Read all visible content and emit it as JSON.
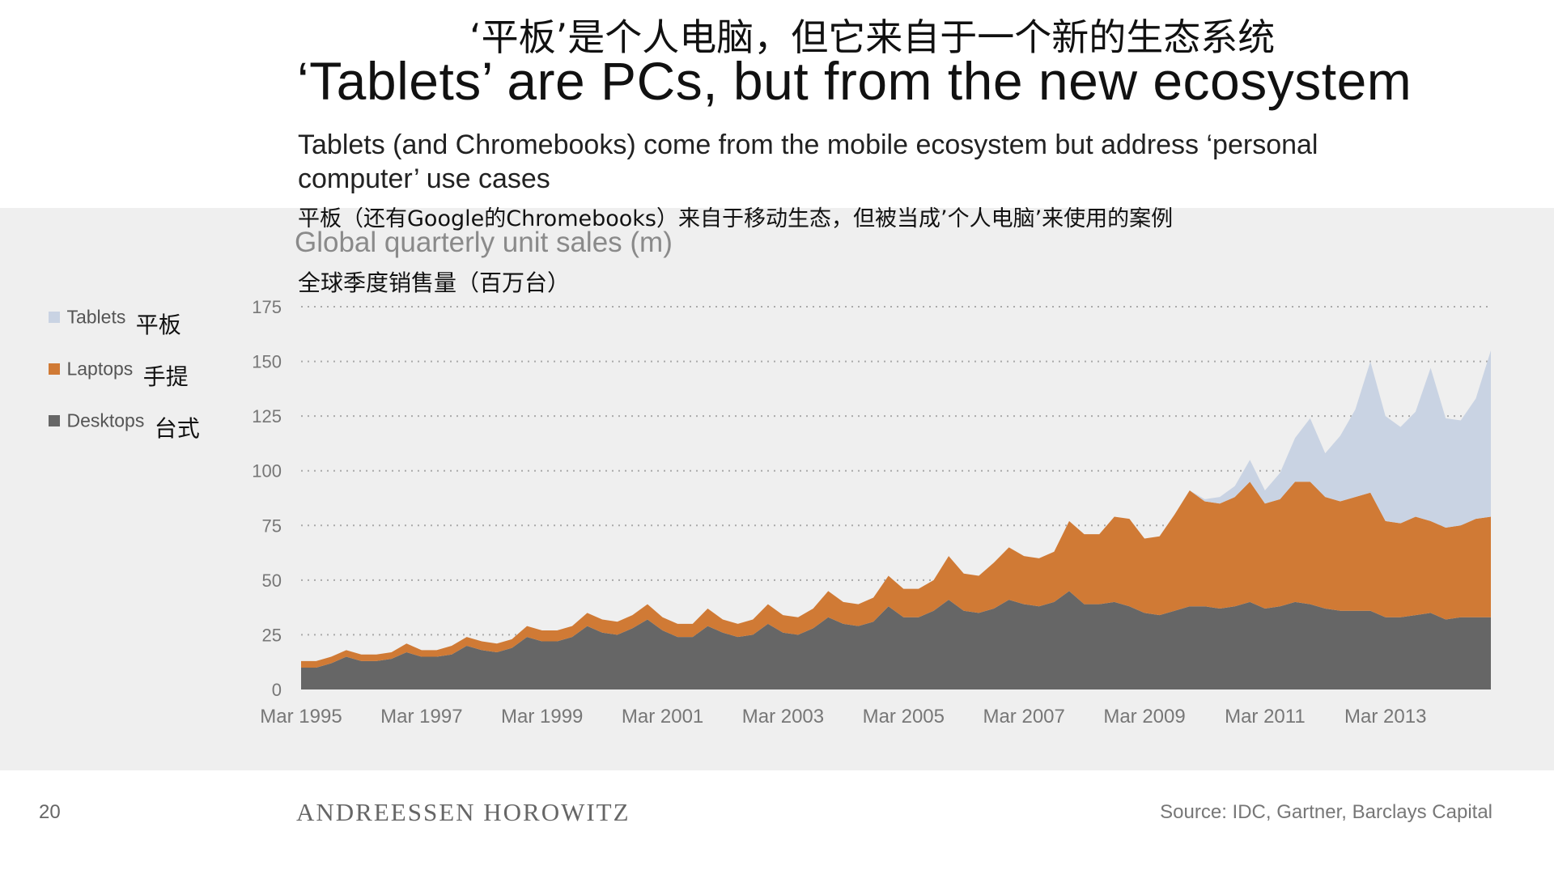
{
  "header": {
    "title_cn": "‘平板’是个人电脑，但它来自于一个新的生态系统",
    "title_en": "‘Tablets’ are PCs, but from the new ecosystem",
    "subtitle_en": "Tablets (and Chromebooks) come from the mobile ecosystem but address ‘personal computer’ use cases",
    "subtitle_cn": "平板（还有Google的Chromebooks）来自于移动生态，但被当成’个人电脑’来使用的案例"
  },
  "legend": [
    {
      "label": "Tablets",
      "label_cn": "平板",
      "color": "#c9d3e3"
    },
    {
      "label": "Laptops",
      "label_cn": "手提",
      "color": "#d07a35"
    },
    {
      "label": "Desktops",
      "label_cn": "台式",
      "color": "#666666"
    }
  ],
  "chart_data": {
    "type": "area",
    "stacked": true,
    "title": "Global quarterly unit sales (m)",
    "title_cn": "全球季度销售量（百万台）",
    "ylim": [
      0,
      175
    ],
    "yticks": [
      0,
      25,
      50,
      75,
      100,
      125,
      150,
      175
    ],
    "xlim": [
      "Mar 1995",
      "Q3 2014"
    ],
    "xticks": [
      "Mar 1995",
      "Mar 1997",
      "Mar 1999",
      "Mar 2001",
      "Mar 2003",
      "Mar 2005",
      "Mar 2007",
      "Mar 2009",
      "Mar 2011",
      "Mar 2013"
    ],
    "grid": true,
    "quarters_start": "Mar 1995",
    "series": [
      {
        "name": "Desktops",
        "color": "#666666",
        "values": [
          10,
          10,
          12,
          15,
          13,
          13,
          14,
          17,
          15,
          15,
          16,
          20,
          18,
          17,
          19,
          24,
          22,
          22,
          24,
          29,
          26,
          25,
          28,
          32,
          27,
          24,
          24,
          29,
          26,
          24,
          25,
          30,
          26,
          25,
          28,
          33,
          30,
          29,
          31,
          38,
          33,
          33,
          36,
          41,
          36,
          35,
          37,
          41,
          39,
          38,
          40,
          45,
          39,
          39,
          40,
          38,
          35,
          34,
          36,
          38,
          38,
          37,
          38,
          40,
          37,
          38,
          40,
          39,
          37,
          36,
          36,
          36,
          33,
          33,
          34,
          35,
          32,
          33,
          33,
          33
        ]
      },
      {
        "name": "Laptops",
        "color": "#d07a35",
        "values": [
          3,
          3,
          3,
          3,
          3,
          3,
          3,
          4,
          3,
          3,
          4,
          4,
          4,
          4,
          4,
          5,
          5,
          5,
          5,
          6,
          6,
          6,
          6,
          7,
          6,
          6,
          6,
          8,
          6,
          6,
          7,
          9,
          8,
          8,
          9,
          12,
          10,
          10,
          11,
          14,
          13,
          13,
          14,
          20,
          17,
          17,
          21,
          24,
          22,
          22,
          23,
          32,
          32,
          32,
          39,
          40,
          34,
          36,
          44,
          53,
          48,
          48,
          50,
          55,
          48,
          49,
          55,
          56,
          51,
          50,
          52,
          54,
          44,
          43,
          45,
          42,
          42,
          42,
          45,
          46
        ]
      },
      {
        "name": "Tablets",
        "color": "#c9d3e3",
        "values": [
          0,
          0,
          0,
          0,
          0,
          0,
          0,
          0,
          0,
          0,
          0,
          0,
          0,
          0,
          0,
          0,
          0,
          0,
          0,
          0,
          0,
          0,
          0,
          0,
          0,
          0,
          0,
          0,
          0,
          0,
          0,
          0,
          0,
          0,
          0,
          0,
          0,
          0,
          0,
          0,
          0,
          0,
          0,
          0,
          0,
          0,
          0,
          0,
          0,
          0,
          0,
          0,
          0,
          0,
          0,
          0,
          0,
          0,
          0,
          0,
          1,
          3,
          5,
          10,
          6,
          12,
          20,
          29,
          20,
          30,
          40,
          60,
          48,
          44,
          48,
          70,
          50,
          48,
          55,
          76
        ]
      }
    ]
  },
  "footer": {
    "page_number": "20",
    "brand": "ANDREESSEN HOROWITZ",
    "source": "Source: IDC, Gartner, Barclays Capital"
  }
}
